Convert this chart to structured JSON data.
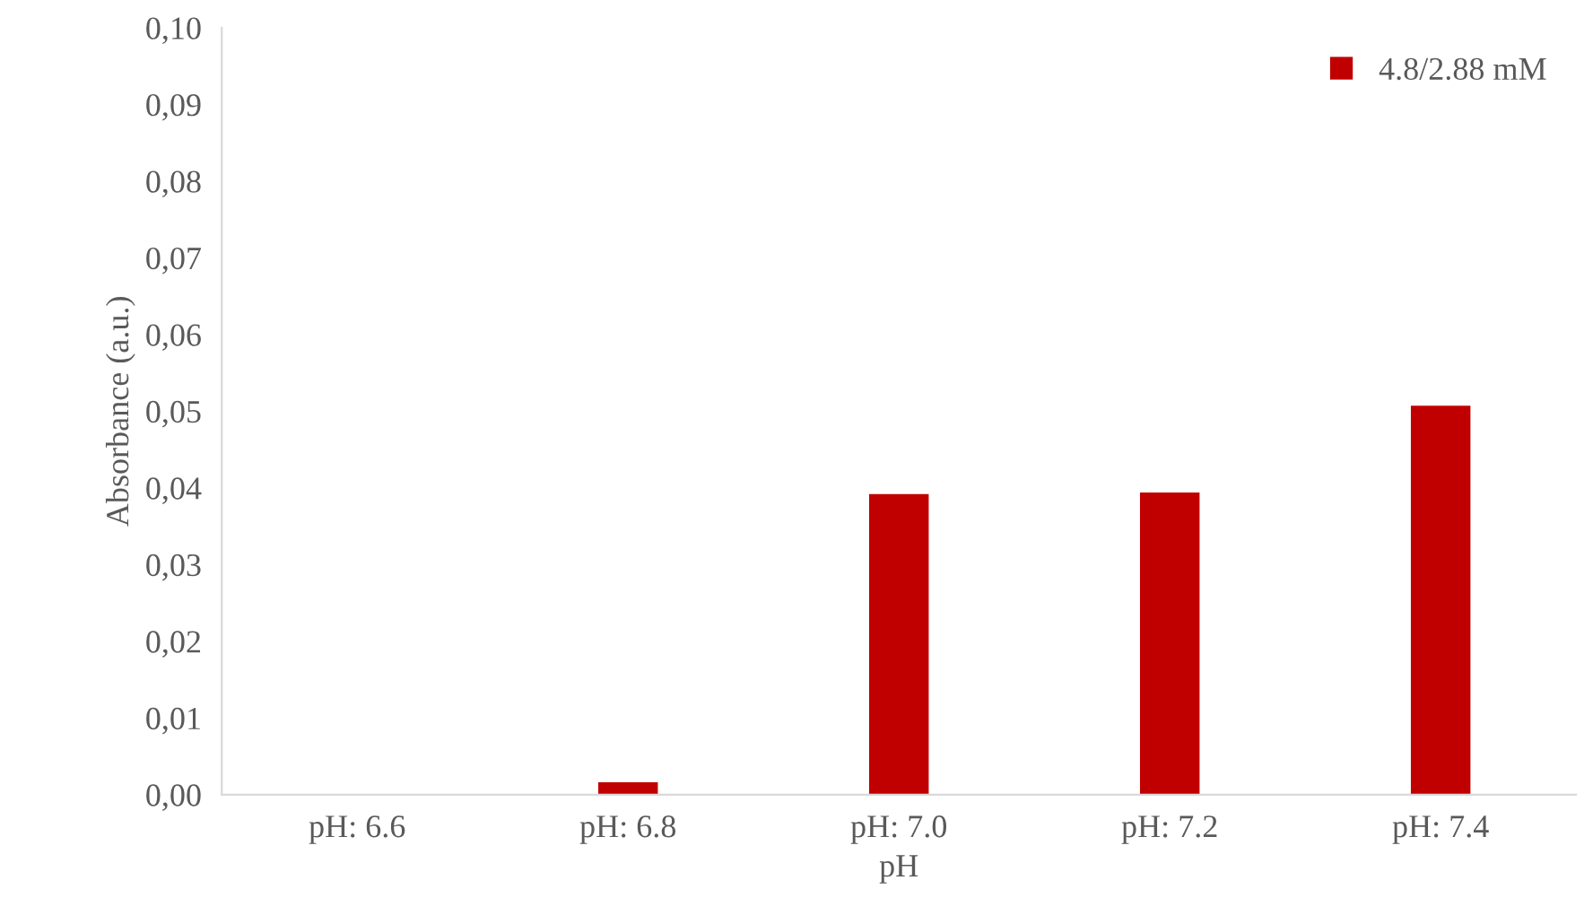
{
  "chart_data": {
    "type": "bar",
    "xlabel": "pH",
    "ylabel": "Absorbance (a.u.)",
    "categories": [
      "pH: 6.6",
      "pH: 6.8",
      "pH: 7.0",
      "pH: 7.2",
      "pH: 7.4"
    ],
    "series": [
      {
        "name": "4.8/2.88 mM",
        "color": "#c00000",
        "values": [
          0,
          0.0016,
          0.0392,
          0.0394,
          0.0507
        ]
      }
    ],
    "ylim": [
      0,
      0.1
    ],
    "yticks": [
      {
        "value": 0,
        "label": "0,00"
      },
      {
        "value": 0.01,
        "label": "0,01"
      },
      {
        "value": 0.02,
        "label": "0,02"
      },
      {
        "value": 0.03,
        "label": "0,03"
      },
      {
        "value": 0.04,
        "label": "0,04"
      },
      {
        "value": 0.05,
        "label": "0,05"
      },
      {
        "value": 0.06,
        "label": "0,06"
      },
      {
        "value": 0.07,
        "label": "0,07"
      },
      {
        "value": 0.08,
        "label": "0,08"
      },
      {
        "value": 0.09,
        "label": "0,09"
      },
      {
        "value": 0.1,
        "label": "0,10"
      }
    ],
    "grid": false,
    "legend": "top right"
  }
}
